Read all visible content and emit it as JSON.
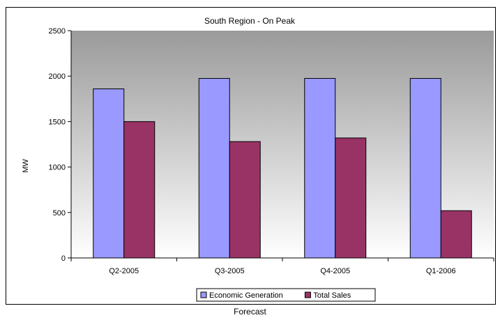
{
  "chart_data": {
    "type": "bar",
    "title": "South Region - On Peak",
    "ylabel": "MW",
    "xlabel": "",
    "categories": [
      "Q2-2005",
      "Q3-2005",
      "Q4-2005",
      "Q1-2006"
    ],
    "series": [
      {
        "name": "Economic Generation",
        "values": [
          1860,
          1975,
          1975,
          1975
        ],
        "color": "#9999ff"
      },
      {
        "name": "Total Sales",
        "values": [
          1500,
          1280,
          1320,
          520
        ],
        "color": "#993366"
      }
    ],
    "ylim": [
      0,
      2500
    ],
    "yticks": [
      0,
      500,
      1000,
      1500,
      2000,
      2500
    ],
    "grid": false,
    "legend_position": "bottom",
    "plot_background": "gradient gray"
  },
  "caption": "Forecast"
}
